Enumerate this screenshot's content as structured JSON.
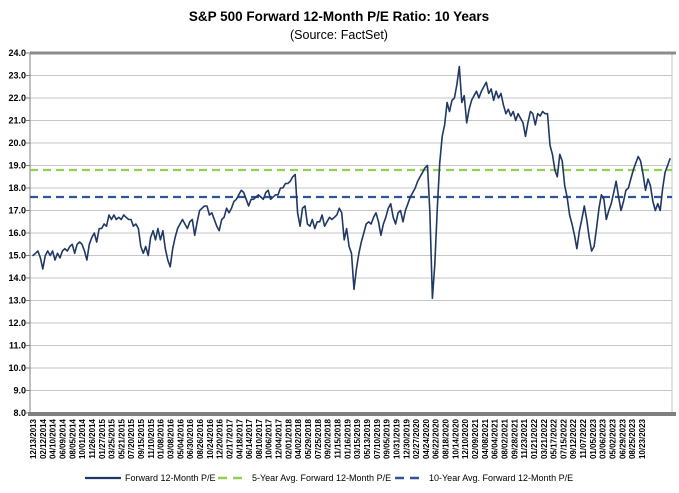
{
  "header": {
    "title": "S&P 500 Forward 12-Month P/E Ratio: 10 Years",
    "subtitle": "(Source: FactSet)"
  },
  "chart_data": {
    "type": "line",
    "title": "S&P 500 Forward 12-Month P/E Ratio: 10 Years",
    "source": "FactSet",
    "grid": "horizontal",
    "legend_position": "bottom",
    "ylim": [
      8.0,
      24.0
    ],
    "ytick_step": 1.0,
    "y_tick_labels": [
      "24.0",
      "23.0",
      "22.0",
      "21.0",
      "20.0",
      "19.0",
      "18.0",
      "17.0",
      "16.0",
      "15.0",
      "14.0",
      "13.0",
      "12.0",
      "11.0",
      "10.0",
      "9.0",
      "8.0"
    ],
    "x_tick_labels": [
      "12/13/2013",
      "02/12/2014",
      "04/10/2014",
      "06/09/2014",
      "08/05/2014",
      "10/01/2014",
      "11/26/2014",
      "01/27/2015",
      "03/25/2015",
      "05/21/2015",
      "07/20/2015",
      "09/15/2015",
      "11/10/2015",
      "01/08/2016",
      "03/08/2016",
      "05/04/2016",
      "06/30/2016",
      "08/26/2016",
      "10/24/2016",
      "12/20/2016",
      "02/17/2017",
      "04/18/2017",
      "06/14/2017",
      "08/10/2017",
      "10/06/2017",
      "12/04/2017",
      "02/01/2018",
      "04/02/2018",
      "05/29/2018",
      "07/25/2018",
      "09/20/2018",
      "11/15/2018",
      "01/16/2019",
      "03/15/2019",
      "05/13/2019",
      "07/10/2019",
      "09/05/2019",
      "10/31/2019",
      "12/30/2019",
      "02/27/2020",
      "04/24/2020",
      "06/22/2020",
      "08/18/2020",
      "10/14/2020",
      "12/10/2020",
      "02/09/2021",
      "04/08/2021",
      "06/04/2021",
      "08/02/2021",
      "09/28/2021",
      "11/23/2021",
      "01/21/2022",
      "03/21/2022",
      "05/17/2022",
      "07/15/2022",
      "09/12/2022",
      "11/07/2022",
      "01/05/2023",
      "03/06/2023",
      "05/02/2023",
      "06/29/2023",
      "08/25/2023",
      "10/23/2023"
    ],
    "colors": {
      "grid": "#C6C6C6",
      "axis": "#808080",
      "plot_top_border": "#8C8C8C",
      "plot_bottom_border": "#7F7F7F",
      "plot_right_border": "#C6C6C6"
    },
    "series": [
      {
        "name": "Forward 12-Month P/E",
        "color": "#1F3864",
        "style": "solid",
        "values": [
          15.0,
          15.1,
          15.2,
          14.9,
          14.4,
          15.0,
          15.2,
          15.0,
          15.2,
          14.8,
          15.1,
          14.9,
          15.2,
          15.3,
          15.2,
          15.4,
          15.5,
          15.1,
          15.5,
          15.6,
          15.5,
          15.2,
          14.8,
          15.5,
          15.8,
          16.0,
          15.6,
          16.2,
          16.2,
          16.4,
          16.3,
          16.8,
          16.6,
          16.8,
          16.6,
          16.7,
          16.6,
          16.8,
          16.7,
          16.6,
          16.6,
          16.3,
          16.4,
          16.2,
          15.4,
          15.1,
          15.4,
          15.0,
          15.8,
          16.1,
          15.7,
          16.2,
          15.7,
          16.1,
          15.3,
          14.8,
          14.5,
          15.3,
          15.8,
          16.2,
          16.4,
          16.6,
          16.4,
          16.2,
          16.5,
          16.6,
          15.9,
          16.5,
          17.0,
          17.1,
          17.2,
          17.2,
          16.8,
          16.9,
          16.6,
          16.3,
          16.1,
          16.6,
          16.7,
          17.1,
          16.9,
          17.1,
          17.4,
          17.5,
          17.7,
          17.9,
          17.8,
          17.5,
          17.2,
          17.5,
          17.5,
          17.6,
          17.7,
          17.6,
          17.5,
          17.8,
          17.9,
          17.5,
          17.6,
          17.7,
          17.7,
          18.0,
          18.0,
          18.2,
          18.2,
          18.3,
          18.5,
          18.6,
          16.9,
          16.3,
          17.1,
          17.2,
          16.4,
          16.3,
          16.6,
          16.2,
          16.5,
          16.5,
          16.8,
          16.3,
          16.5,
          16.7,
          16.6,
          16.7,
          16.8,
          17.1,
          16.9,
          15.7,
          16.2,
          15.4,
          15.1,
          13.5,
          14.4,
          15.1,
          15.6,
          16.0,
          16.4,
          16.5,
          16.4,
          16.7,
          16.9,
          16.5,
          15.9,
          16.4,
          16.7,
          17.1,
          17.3,
          16.7,
          16.4,
          16.9,
          17.0,
          16.5,
          17.0,
          17.3,
          17.6,
          17.8,
          18.0,
          18.3,
          18.5,
          18.7,
          18.9,
          19.0,
          16.9,
          13.1,
          14.6,
          17.1,
          19.1,
          20.3,
          20.8,
          21.8,
          21.4,
          21.9,
          22.0,
          22.6,
          23.4,
          21.8,
          22.1,
          20.9,
          21.5,
          21.9,
          22.1,
          22.3,
          22.0,
          22.3,
          22.5,
          22.7,
          22.2,
          22.4,
          21.9,
          22.3,
          22.0,
          22.2,
          21.7,
          21.3,
          21.5,
          21.2,
          21.4,
          21.0,
          21.3,
          21.1,
          20.9,
          20.3,
          20.9,
          21.4,
          21.3,
          20.8,
          21.3,
          21.2,
          21.4,
          21.3,
          21.3,
          19.9,
          19.5,
          18.8,
          18.5,
          19.5,
          19.2,
          18.1,
          17.6,
          16.8,
          16.4,
          15.9,
          15.3,
          16.1,
          16.6,
          17.2,
          16.6,
          15.8,
          15.2,
          15.4,
          16.2,
          17.1,
          17.7,
          17.5,
          16.6,
          17.0,
          17.3,
          17.8,
          18.3,
          17.6,
          17.0,
          17.4,
          17.9,
          18.0,
          18.4,
          18.8,
          19.1,
          19.4,
          19.2,
          18.6,
          17.9,
          18.4,
          18.1,
          17.4,
          17.0,
          17.3,
          17.0,
          18.0,
          18.7,
          19.0,
          19.3
        ]
      },
      {
        "name": "5-Year Avg. Forward 12-Month P/E",
        "color": "#92D050",
        "style": "dashed",
        "value": 18.8
      },
      {
        "name": "10-Year Avg. Forward 12-Month P/E",
        "color": "#2F5597",
        "style": "dashed",
        "value": 17.6
      }
    ]
  }
}
